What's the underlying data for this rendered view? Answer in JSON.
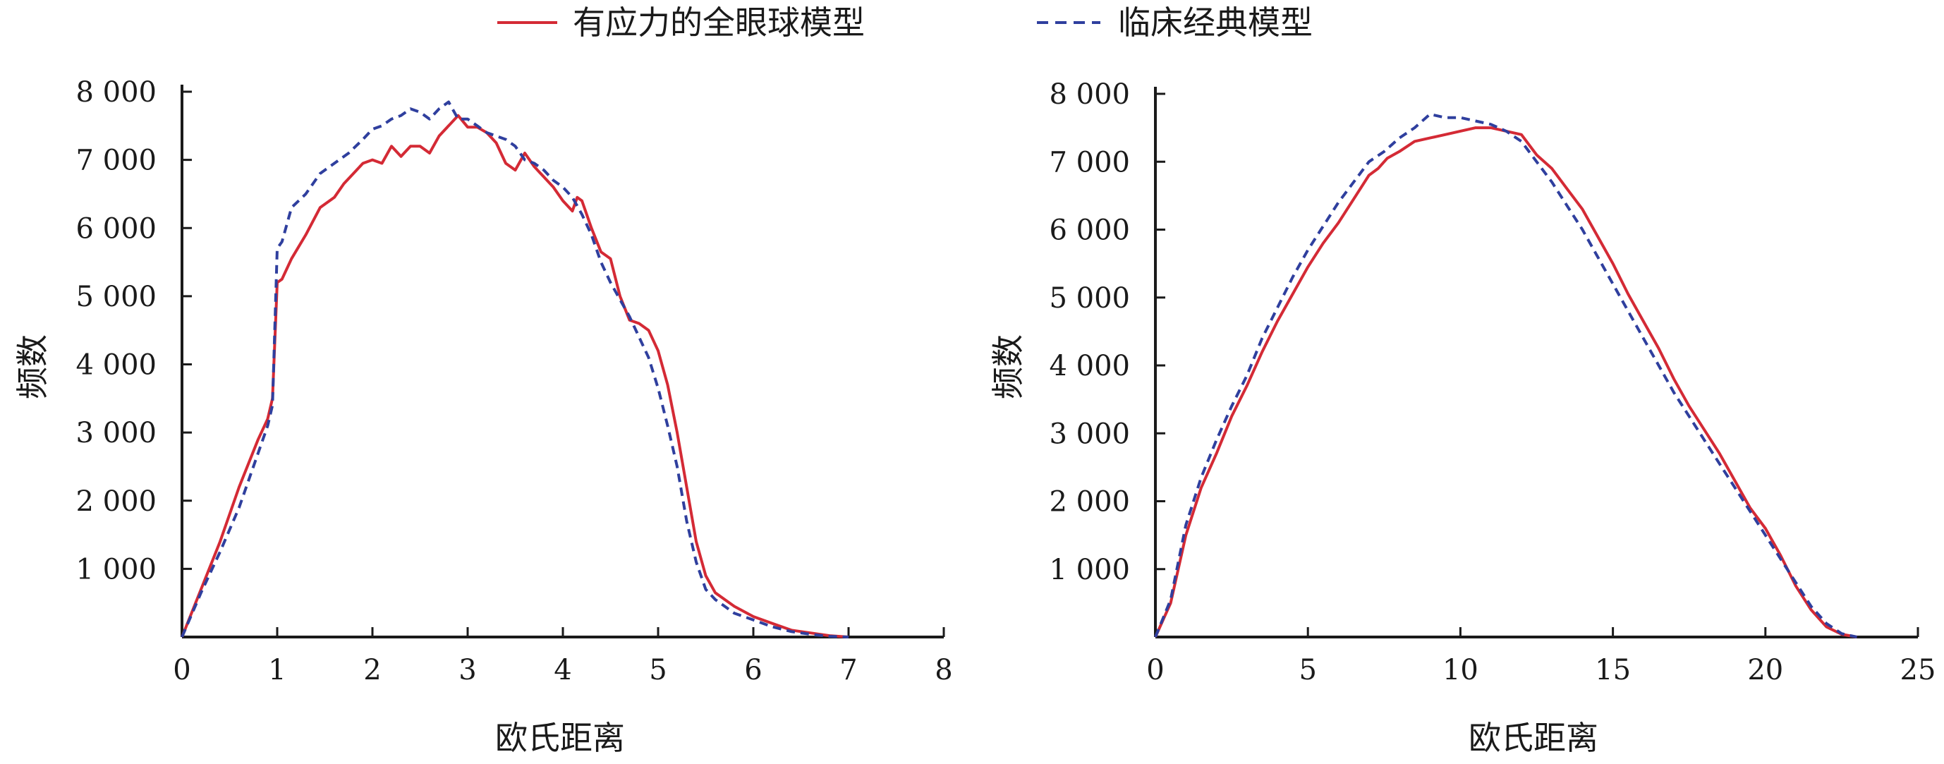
{
  "legend": {
    "series_a_label": "有应力的全眼球模型",
    "series_b_label": "临床经典模型"
  },
  "colors": {
    "series_a": "#d42a35",
    "series_b": "#2f3f9e",
    "axis": "#1a1a1a"
  },
  "chart_data": [
    {
      "type": "line",
      "xlabel": "欧氏距离",
      "ylabel": "频数",
      "xlim": [
        0,
        8
      ],
      "ylim": [
        0,
        8000
      ],
      "xticks": [
        0,
        1,
        2,
        3,
        4,
        5,
        6,
        7,
        8
      ],
      "xtick_labels": [
        "0",
        "1",
        "2",
        "3",
        "4",
        "5",
        "6",
        "7",
        "8"
      ],
      "yticks": [
        1000,
        2000,
        3000,
        4000,
        5000,
        6000,
        7000,
        8000
      ],
      "ytick_labels": [
        "1 000",
        "2 000",
        "3 000",
        "4 000",
        "5 000",
        "6 000",
        "7 000",
        "8 000"
      ],
      "series": [
        {
          "name": "有应力的全眼球模型",
          "style": "solid",
          "x": [
            0,
            0.2,
            0.4,
            0.6,
            0.8,
            0.9,
            0.95,
            1.0,
            1.05,
            1.15,
            1.3,
            1.45,
            1.6,
            1.7,
            1.8,
            1.9,
            2.0,
            2.1,
            2.2,
            2.3,
            2.4,
            2.5,
            2.6,
            2.7,
            2.8,
            2.9,
            3.0,
            3.1,
            3.2,
            3.3,
            3.4,
            3.5,
            3.6,
            3.7,
            3.8,
            3.9,
            4.0,
            4.1,
            4.15,
            4.2,
            4.3,
            4.4,
            4.5,
            4.6,
            4.7,
            4.8,
            4.9,
            5.0,
            5.1,
            5.2,
            5.3,
            5.4,
            5.5,
            5.6,
            5.7,
            5.8,
            6.0,
            6.2,
            6.4,
            6.6,
            6.8,
            7.0
          ],
          "y": [
            0,
            700,
            1400,
            2200,
            2900,
            3200,
            3500,
            5200,
            5250,
            5550,
            5900,
            6300,
            6450,
            6650,
            6800,
            6950,
            7000,
            6950,
            7200,
            7050,
            7200,
            7200,
            7100,
            7350,
            7500,
            7650,
            7480,
            7480,
            7400,
            7250,
            6950,
            6850,
            7100,
            6900,
            6750,
            6600,
            6400,
            6250,
            6450,
            6400,
            6000,
            5650,
            5550,
            5000,
            4650,
            4600,
            4500,
            4200,
            3700,
            3000,
            2200,
            1400,
            900,
            650,
            550,
            450,
            300,
            200,
            100,
            60,
            20,
            0
          ]
        },
        {
          "name": "临床经典模型",
          "style": "dashed",
          "x": [
            0,
            0.2,
            0.4,
            0.6,
            0.8,
            0.9,
            0.95,
            1.0,
            1.05,
            1.15,
            1.3,
            1.45,
            1.6,
            1.75,
            1.9,
            2.0,
            2.1,
            2.2,
            2.3,
            2.4,
            2.5,
            2.6,
            2.7,
            2.8,
            2.9,
            3.0,
            3.1,
            3.2,
            3.3,
            3.4,
            3.5,
            3.6,
            3.7,
            3.8,
            3.9,
            4.0,
            4.1,
            4.2,
            4.3,
            4.4,
            4.5,
            4.6,
            4.7,
            4.8,
            4.9,
            5.0,
            5.1,
            5.2,
            5.3,
            5.4,
            5.5,
            5.6,
            5.7,
            5.8,
            6.0,
            6.2,
            6.4,
            6.6,
            6.8,
            7.0
          ],
          "y": [
            0,
            650,
            1250,
            1900,
            2700,
            3100,
            3400,
            5700,
            5800,
            6300,
            6500,
            6800,
            6950,
            7100,
            7300,
            7450,
            7500,
            7600,
            7650,
            7750,
            7700,
            7600,
            7750,
            7850,
            7600,
            7600,
            7500,
            7400,
            7350,
            7300,
            7200,
            7000,
            6950,
            6850,
            6700,
            6600,
            6450,
            6200,
            5900,
            5500,
            5200,
            4950,
            4700,
            4400,
            4100,
            3650,
            3100,
            2500,
            1700,
            1100,
            700,
            550,
            450,
            350,
            250,
            150,
            80,
            40,
            10,
            0
          ]
        }
      ]
    },
    {
      "type": "line",
      "xlabel": "欧氏距离",
      "ylabel": "频数",
      "xlim": [
        0,
        25
      ],
      "ylim": [
        0,
        8000
      ],
      "xticks": [
        0,
        5,
        10,
        15,
        20,
        25
      ],
      "xtick_labels": [
        "0",
        "5",
        "10",
        "15",
        "20",
        "25"
      ],
      "yticks": [
        1000,
        2000,
        3000,
        4000,
        5000,
        6000,
        7000,
        8000
      ],
      "ytick_labels": [
        "1 000",
        "2 000",
        "3 000",
        "4 000",
        "5 000",
        "6 000",
        "7 000",
        "8 000"
      ],
      "series": [
        {
          "name": "有应力的全眼球模型",
          "style": "solid",
          "x": [
            0,
            0.5,
            1.0,
            1.5,
            2.0,
            2.5,
            3.0,
            3.5,
            4.0,
            4.5,
            5.0,
            5.5,
            6.0,
            6.5,
            7.0,
            7.3,
            7.6,
            8.0,
            8.5,
            9.0,
            9.5,
            10.0,
            10.5,
            11.0,
            11.5,
            12.0,
            12.5,
            13.0,
            13.5,
            14.0,
            14.5,
            15.0,
            15.5,
            16.0,
            16.5,
            17.0,
            17.5,
            18.0,
            18.5,
            19.0,
            19.5,
            20.0,
            20.5,
            21.0,
            21.5,
            22.0,
            22.5,
            23.0
          ],
          "y": [
            0,
            500,
            1500,
            2200,
            2700,
            3250,
            3700,
            4200,
            4650,
            5050,
            5450,
            5800,
            6100,
            6450,
            6800,
            6900,
            7050,
            7150,
            7300,
            7350,
            7400,
            7450,
            7500,
            7500,
            7450,
            7400,
            7100,
            6900,
            6600,
            6300,
            5900,
            5500,
            5050,
            4650,
            4250,
            3800,
            3400,
            3050,
            2700,
            2300,
            1900,
            1600,
            1200,
            750,
            400,
            150,
            40,
            0
          ]
        },
        {
          "name": "临床经典模型",
          "style": "dashed",
          "x": [
            0,
            0.5,
            1.0,
            1.5,
            2.0,
            2.5,
            3.0,
            3.5,
            4.0,
            4.5,
            5.0,
            5.5,
            6.0,
            6.5,
            7.0,
            7.5,
            8.0,
            8.5,
            9.0,
            9.5,
            10.0,
            10.5,
            11.0,
            11.5,
            12.0,
            12.5,
            13.0,
            13.5,
            14.0,
            14.5,
            15.0,
            15.5,
            16.0,
            16.5,
            17.0,
            17.5,
            18.0,
            18.5,
            19.0,
            19.5,
            20.0,
            20.5,
            21.0,
            21.5,
            22.0,
            22.5,
            23.0
          ],
          "y": [
            0,
            550,
            1650,
            2350,
            2900,
            3400,
            3850,
            4400,
            4850,
            5300,
            5700,
            6050,
            6400,
            6700,
            7000,
            7150,
            7350,
            7500,
            7700,
            7650,
            7650,
            7600,
            7550,
            7450,
            7300,
            7000,
            6700,
            6350,
            6000,
            5600,
            5200,
            4800,
            4400,
            4000,
            3600,
            3250,
            2900,
            2550,
            2200,
            1850,
            1500,
            1150,
            800,
            450,
            200,
            50,
            0
          ]
        }
      ]
    }
  ]
}
